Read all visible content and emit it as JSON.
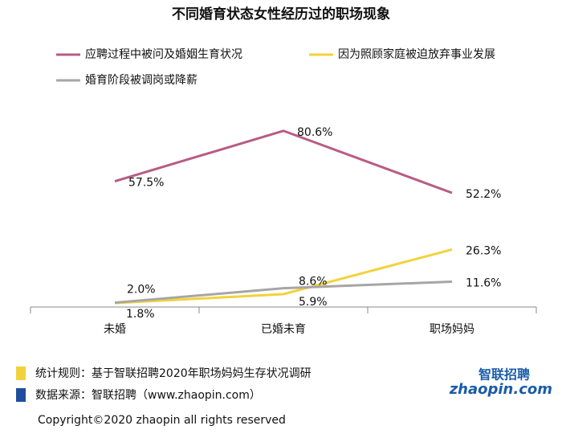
{
  "chart_data": {
    "type": "line",
    "title": "不同婚育状态女性经历过的职场现象",
    "categories": [
      "未婚",
      "已婚未育",
      "职场妈妈"
    ],
    "series": [
      {
        "name": "应聘过程中被问及婚姻生育状况",
        "color": "#b85c85",
        "values": [
          57.5,
          80.6,
          52.2
        ],
        "value_labels": [
          "57.5%",
          "80.6%",
          "52.2%"
        ]
      },
      {
        "name": "因为照顾家庭被迫放弃事业发展",
        "color": "#f2d23c",
        "values": [
          1.8,
          5.9,
          26.3
        ],
        "value_labels": [
          "1.8%",
          "5.9%",
          "26.3%"
        ]
      },
      {
        "name": "婚育阶段被调岗或降薪",
        "color": "#a6a6a6",
        "values": [
          2.0,
          8.6,
          11.6
        ],
        "value_labels": [
          "2.0%",
          "8.6%",
          "11.6%"
        ]
      }
    ],
    "ylim": [
      0,
      100
    ]
  },
  "notes": [
    "统计规则：基于智联招聘2020年职场妈妈生存状况调研",
    "数据来源：智联招聘（www.zhaopin.com）"
  ],
  "logo": {
    "cn": "智联招聘",
    "en": "zhaopin.com"
  },
  "copyright": "Copyright©2020  zhaopin all rights reserved"
}
